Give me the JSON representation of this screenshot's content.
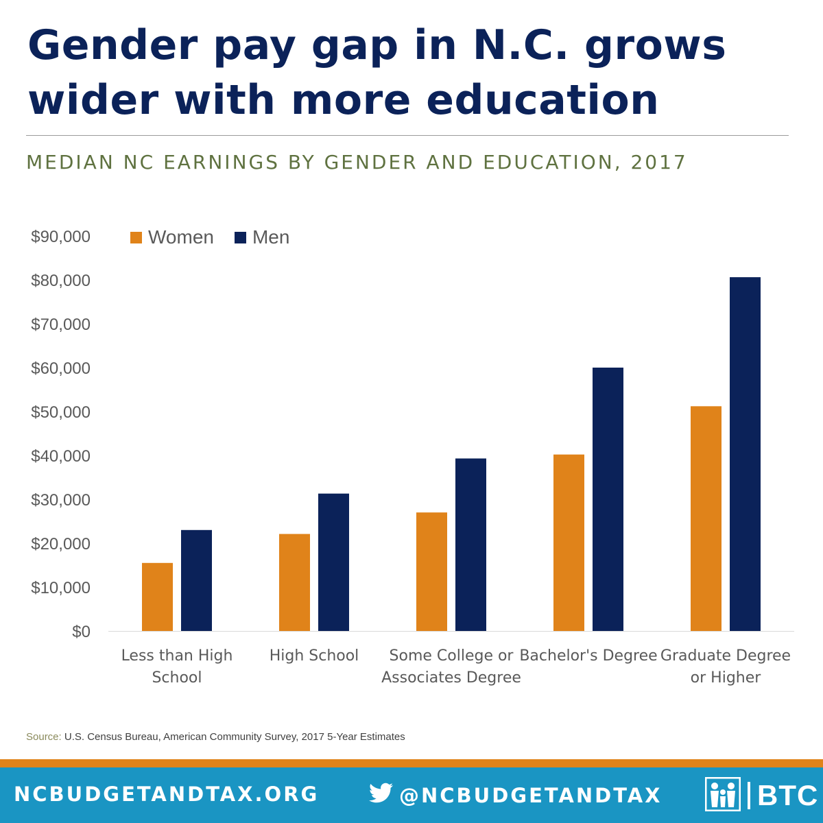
{
  "header": {
    "title": "Gender pay gap in N.C. grows wider with more education",
    "subtitle": "MEDIAN NC EARNINGS BY GENDER AND EDUCATION, 2017"
  },
  "colors": {
    "women": "#e0831a",
    "men": "#0b2259",
    "title": "#0b2259",
    "subtitle": "#5f7240",
    "footer_bg": "#1a95c3",
    "footer_accent": "#e0831a"
  },
  "chart_data": {
    "type": "bar",
    "title": "",
    "xlabel": "",
    "ylabel": "",
    "categories": [
      [
        "Less than High",
        "School"
      ],
      [
        "High School"
      ],
      [
        "Some College or",
        "Associates Degree"
      ],
      [
        "Bachelor's Degree"
      ],
      [
        "Graduate Degree",
        "or Higher"
      ]
    ],
    "series": [
      {
        "name": "Women",
        "values": [
          15500,
          22100,
          27000,
          40200,
          51200
        ]
      },
      {
        "name": "Men",
        "values": [
          23000,
          31300,
          39300,
          60000,
          80600
        ]
      }
    ],
    "ylim": [
      0,
      90000
    ],
    "yticks": [
      0,
      10000,
      20000,
      30000,
      40000,
      50000,
      60000,
      70000,
      80000,
      90000
    ],
    "ytick_labels": [
      "$0",
      "$10,000",
      "$20,000",
      "$30,000",
      "$40,000",
      "$50,000",
      "$60,000",
      "$70,000",
      "$80,000",
      "$90,000"
    ],
    "grid": false,
    "legend": "top-left"
  },
  "source": {
    "label": "Source:",
    "text": "U.S. Census Bureau, American Community Survey, 2017 5-Year Estimates"
  },
  "footer": {
    "website": "NCBUDGETANDTAX.ORG",
    "twitter_handle": "@NCBUDGETANDTAX",
    "twitter_icon": "twitter-bird-icon",
    "logo_icon": "family-figures-icon",
    "logo_text": "BTC"
  }
}
